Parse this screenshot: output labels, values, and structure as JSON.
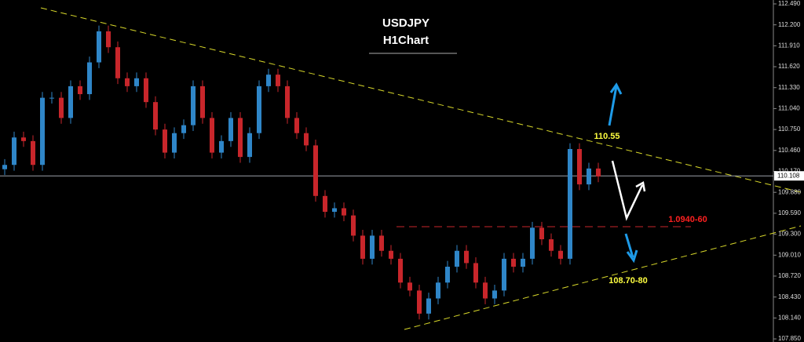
{
  "chart_data": {
    "type": "candlestick",
    "title": "USDJPY",
    "subtitle": "H1Chart",
    "annotations": [
      "110.55",
      "1.0940-60",
      "108.70-80"
    ],
    "up_color": "#2f86c8",
    "down_color": "#c8262b",
    "last_price": 110.108,
    "ylim": [
      107.807,
      112.544
    ],
    "yticks": [
      {
        "value": 112.49,
        "label": "112.490"
      },
      {
        "value": 112.2,
        "label": "112.200"
      },
      {
        "value": 111.91,
        "label": "111.910"
      },
      {
        "value": 111.62,
        "label": "111.620"
      },
      {
        "value": 111.33,
        "label": "111.330"
      },
      {
        "value": 111.04,
        "label": "111.040"
      },
      {
        "value": 110.75,
        "label": "110.750"
      },
      {
        "value": 110.46,
        "label": "110.460"
      },
      {
        "value": 110.17,
        "label": "110.170"
      },
      {
        "value": 109.88,
        "label": "109.880"
      },
      {
        "value": 109.59,
        "label": "109.590"
      },
      {
        "value": 109.3,
        "label": "109.300"
      },
      {
        "value": 109.01,
        "label": "109.010"
      },
      {
        "value": 108.72,
        "label": "108.720"
      },
      {
        "value": 108.43,
        "label": "108.430"
      },
      {
        "value": 108.14,
        "label": "108.140"
      },
      {
        "value": 107.85,
        "label": "107.850"
      }
    ],
    "open": [
      110.2,
      110.26,
      110.64,
      110.59,
      110.26,
      111.19,
      111.19,
      110.91,
      111.35,
      111.24,
      111.68,
      112.11,
      111.89,
      111.46,
      111.35,
      111.46,
      111.13,
      110.75,
      110.43,
      110.7,
      110.81,
      111.35,
      110.91,
      110.43,
      110.59,
      110.91,
      110.37,
      110.7,
      111.35,
      111.51,
      111.35,
      110.91,
      110.7,
      110.53,
      109.83,
      109.61,
      109.66,
      109.56,
      109.28,
      108.96,
      109.28,
      109.07,
      108.96,
      108.63,
      108.52,
      108.2,
      108.41,
      108.63,
      108.85,
      109.07,
      108.9,
      108.63,
      108.41,
      108.52,
      108.96,
      108.85,
      108.96,
      109.39,
      109.23,
      109.07,
      108.96,
      110.48,
      109.99,
      110.21
    ],
    "close": [
      110.26,
      110.64,
      110.59,
      110.26,
      111.19,
      111.19,
      110.91,
      111.35,
      111.24,
      111.68,
      112.11,
      111.89,
      111.46,
      111.35,
      111.46,
      111.13,
      110.75,
      110.43,
      110.7,
      110.81,
      111.35,
      110.91,
      110.43,
      110.59,
      110.91,
      110.37,
      110.7,
      111.35,
      111.51,
      111.35,
      110.91,
      110.7,
      110.53,
      109.83,
      109.61,
      109.66,
      109.56,
      109.28,
      108.96,
      109.28,
      109.07,
      108.96,
      108.63,
      108.52,
      108.2,
      108.41,
      108.63,
      108.85,
      109.07,
      108.9,
      108.63,
      108.41,
      108.52,
      108.96,
      108.85,
      108.96,
      109.39,
      109.23,
      109.07,
      108.96,
      110.48,
      109.99,
      110.21,
      110.1
    ],
    "high": [
      110.34,
      110.72,
      110.72,
      110.67,
      111.27,
      111.27,
      111.27,
      111.43,
      111.43,
      111.76,
      112.19,
      112.19,
      111.97,
      111.54,
      111.54,
      111.54,
      111.21,
      110.83,
      110.78,
      110.89,
      111.43,
      111.43,
      110.99,
      110.67,
      110.99,
      110.99,
      110.78,
      111.43,
      111.59,
      111.59,
      111.43,
      110.99,
      110.78,
      110.61,
      109.91,
      109.74,
      109.74,
      109.64,
      109.36,
      109.36,
      109.36,
      109.15,
      109.04,
      108.71,
      108.6,
      108.49,
      108.71,
      108.93,
      109.15,
      109.15,
      108.98,
      108.71,
      108.6,
      109.04,
      109.04,
      109.04,
      109.47,
      109.47,
      109.31,
      109.15,
      110.56,
      110.56,
      110.29,
      110.29
    ],
    "low": [
      110.12,
      110.18,
      110.51,
      110.18,
      110.18,
      111.11,
      110.83,
      110.83,
      111.16,
      111.16,
      111.6,
      111.81,
      111.38,
      111.27,
      111.27,
      111.05,
      110.67,
      110.35,
      110.35,
      110.62,
      110.73,
      110.83,
      110.35,
      110.35,
      110.51,
      110.29,
      110.29,
      110.62,
      111.27,
      111.27,
      110.83,
      110.62,
      110.45,
      109.75,
      109.53,
      109.53,
      109.48,
      109.2,
      108.88,
      108.88,
      108.99,
      108.88,
      108.55,
      108.44,
      108.12,
      108.12,
      108.33,
      108.55,
      108.77,
      108.82,
      108.55,
      108.33,
      108.33,
      108.44,
      108.77,
      108.77,
      108.88,
      109.15,
      108.99,
      108.88,
      108.88,
      109.91,
      109.91,
      110.02
    ]
  }
}
